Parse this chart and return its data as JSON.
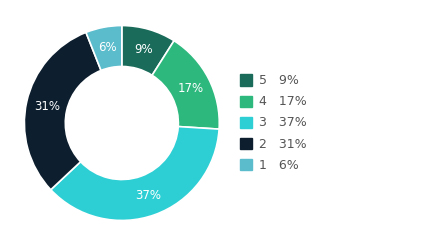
{
  "labels": [
    "5",
    "4",
    "3",
    "2",
    "1"
  ],
  "values": [
    9,
    17,
    37,
    31,
    6
  ],
  "colors": [
    "#1a6b5a",
    "#2db87e",
    "#2ecfd4",
    "#0d1f2e",
    "#5bbccc"
  ],
  "legend_labels": [
    "5   9%",
    "4   17%",
    "3   37%",
    "2   31%",
    "1   6%"
  ],
  "pct_labels": [
    "9%",
    "17%",
    "37%",
    "31%",
    "6%"
  ],
  "text_color": "#ffffff",
  "background_color": "#ffffff",
  "wedge_text_fontsize": 8.5,
  "legend_fontsize": 9,
  "donut_width": 0.42,
  "startangle": 90
}
